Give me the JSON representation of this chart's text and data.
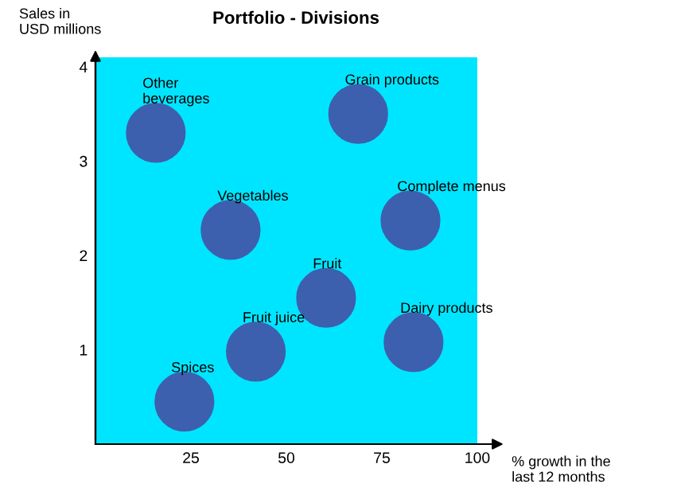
{
  "chart_data": {
    "type": "scatter",
    "title": "Portfolio - Divisions",
    "xlabel": "% growth in the\nlast 12 months",
    "ylabel": "Sales in\nUSD millions",
    "series": [
      {
        "color": "#3d60ae",
        "x": [
          15.8,
          68.8,
          35.4,
          82.5,
          60.4,
          42,
          83.3,
          23.3
        ],
        "values": [
          3.3,
          3.5,
          2.27,
          2.37,
          1.55,
          0.98,
          1.08,
          0.45
        ]
      }
    ],
    "annotations": [
      {
        "text": "Other\nbeverages",
        "x": 15.8,
        "y": 3.3
      },
      {
        "text": "Grain products",
        "x": 68.8,
        "y": 3.5
      },
      {
        "text": "Vegetables",
        "x": 35.4,
        "y": 2.27
      },
      {
        "text": "Complete menus",
        "x": 82.5,
        "y": 2.37
      },
      {
        "text": "Fruit",
        "x": 60.4,
        "y": 1.55
      },
      {
        "text": "Fruit juice",
        "x": 42,
        "y": 0.98
      },
      {
        "text": "Dairy products",
        "x": 83.3,
        "y": 1.08
      },
      {
        "text": "Spices",
        "x": 23.3,
        "y": 0.45
      }
    ],
    "xlim": [
      0,
      100
    ],
    "ylim": [
      0,
      4.1
    ],
    "xticks": [
      25,
      50,
      75,
      100
    ],
    "yticks": [
      1,
      2,
      3,
      4
    ],
    "marker": "circle",
    "grid": false,
    "legend": false
  }
}
